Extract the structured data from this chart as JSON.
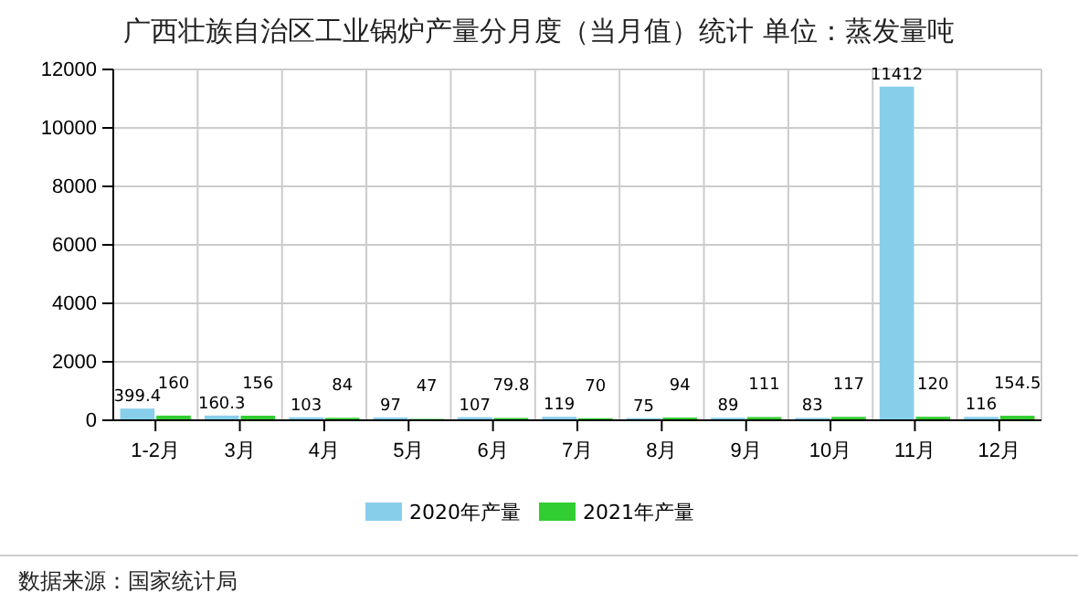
{
  "chart_data": {
    "type": "bar",
    "title": "广西壮族自治区工业锅炉产量分月度（当月值）统计  单位：蒸发量吨",
    "categories": [
      "1-2月",
      "3月",
      "4月",
      "5月",
      "6月",
      "7月",
      "8月",
      "9月",
      "10月",
      "11月",
      "12月"
    ],
    "series": [
      {
        "name": "2020年产量",
        "color": "#87ceeb",
        "values": [
          399.4,
          160.3,
          103,
          97,
          107,
          119,
          75,
          89,
          83,
          11412,
          116
        ]
      },
      {
        "name": "2021年产量",
        "color": "#32cd32",
        "values": [
          160,
          156,
          84,
          47,
          79.8,
          70,
          94,
          111,
          117,
          120,
          154.5
        ]
      }
    ],
    "ylim": [
      0,
      12000
    ],
    "yticks": [
      0,
      2000,
      4000,
      6000,
      8000,
      10000,
      12000
    ],
    "grid": true,
    "legend": "bottom",
    "data_labels": true,
    "annotations": [
      "数据来源：国家统计局"
    ]
  }
}
